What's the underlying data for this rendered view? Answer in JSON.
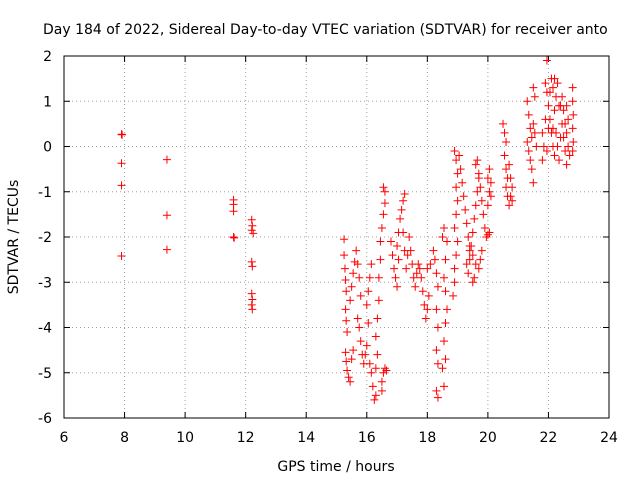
{
  "chart_data": {
    "type": "scatter",
    "title": "Day 184 of 2022, Sidereal Day-to-day VTEC variation (SDTVAR) for receiver anto",
    "xlabel": "GPS time / hours",
    "ylabel": "SDTVAR / TECUs",
    "xlim": [
      6,
      24
    ],
    "ylim": [
      -6,
      2
    ],
    "xticks": [
      "6",
      "8",
      "10",
      "12",
      "14",
      "16",
      "18",
      "20",
      "22",
      "24"
    ],
    "yticks": [
      "2",
      "1",
      "0",
      "-1",
      "-2",
      "-3",
      "-4",
      "-5",
      "-6"
    ],
    "grid": true,
    "marker": "+",
    "series": [
      {
        "name": "SDTVAR",
        "color": "#ff0000",
        "points": [
          [
            7.9,
            0.27
          ],
          [
            7.92,
            0.26
          ],
          [
            7.9,
            -0.37
          ],
          [
            7.9,
            -0.86
          ],
          [
            7.9,
            -2.42
          ],
          [
            9.4,
            -0.29
          ],
          [
            9.4,
            -1.52
          ],
          [
            9.4,
            -2.28
          ],
          [
            11.6,
            -1.18
          ],
          [
            11.6,
            -1.28
          ],
          [
            11.6,
            -1.43
          ],
          [
            11.6,
            -2.0
          ],
          [
            11.62,
            -2.02
          ],
          [
            12.2,
            -1.62
          ],
          [
            12.22,
            -1.75
          ],
          [
            12.2,
            -1.85
          ],
          [
            12.25,
            -1.92
          ],
          [
            12.2,
            -2.55
          ],
          [
            12.22,
            -2.65
          ],
          [
            12.2,
            -3.25
          ],
          [
            12.22,
            -3.38
          ],
          [
            12.2,
            -3.5
          ],
          [
            12.22,
            -3.6
          ],
          [
            15.25,
            -2.05
          ],
          [
            15.25,
            -2.4
          ],
          [
            15.28,
            -2.7
          ],
          [
            15.3,
            -2.95
          ],
          [
            15.32,
            -3.2
          ],
          [
            15.3,
            -3.6
          ],
          [
            15.32,
            -3.85
          ],
          [
            15.35,
            -4.1
          ],
          [
            15.3,
            -4.55
          ],
          [
            15.32,
            -4.75
          ],
          [
            15.35,
            -4.95
          ],
          [
            15.4,
            -5.1
          ],
          [
            15.45,
            -5.2
          ],
          [
            15.5,
            -4.7
          ],
          [
            15.55,
            -4.5
          ],
          [
            15.45,
            -3.4
          ],
          [
            15.5,
            -3.1
          ],
          [
            15.55,
            -2.8
          ],
          [
            15.6,
            -2.55
          ],
          [
            15.65,
            -2.3
          ],
          [
            15.7,
            -2.6
          ],
          [
            15.75,
            -2.9
          ],
          [
            15.8,
            -3.3
          ],
          [
            15.7,
            -3.8
          ],
          [
            15.75,
            -4.0
          ],
          [
            15.8,
            -4.3
          ],
          [
            15.85,
            -4.6
          ],
          [
            15.9,
            -4.8
          ],
          [
            15.95,
            -4.6
          ],
          [
            16.0,
            -4.4
          ],
          [
            16.05,
            -3.9
          ],
          [
            16.0,
            -3.5
          ],
          [
            16.05,
            -3.2
          ],
          [
            16.1,
            -2.9
          ],
          [
            16.15,
            -2.6
          ],
          [
            16.1,
            -4.8
          ],
          [
            16.15,
            -5.0
          ],
          [
            16.2,
            -5.3
          ],
          [
            16.25,
            -5.6
          ],
          [
            16.3,
            -5.5
          ],
          [
            16.3,
            -4.9
          ],
          [
            16.35,
            -4.6
          ],
          [
            16.3,
            -4.2
          ],
          [
            16.35,
            -3.8
          ],
          [
            16.4,
            -3.4
          ],
          [
            16.4,
            -2.9
          ],
          [
            16.45,
            -2.5
          ],
          [
            16.45,
            -2.1
          ],
          [
            16.5,
            -1.8
          ],
          [
            16.55,
            -1.5
          ],
          [
            16.6,
            -1.25
          ],
          [
            16.55,
            -0.9
          ],
          [
            16.6,
            -1.0
          ],
          [
            16.5,
            -5.2
          ],
          [
            16.55,
            -5.0
          ],
          [
            16.6,
            -4.9
          ],
          [
            16.65,
            -4.95
          ],
          [
            16.5,
            -5.4
          ],
          [
            16.8,
            -2.1
          ],
          [
            16.85,
            -2.4
          ],
          [
            16.9,
            -2.7
          ],
          [
            16.95,
            -2.9
          ],
          [
            17.0,
            -3.1
          ],
          [
            17.05,
            -2.5
          ],
          [
            17.0,
            -2.2
          ],
          [
            17.05,
            -1.9
          ],
          [
            17.1,
            -1.6
          ],
          [
            17.15,
            -1.4
          ],
          [
            17.2,
            -1.9
          ],
          [
            17.25,
            -2.3
          ],
          [
            17.3,
            -2.7
          ],
          [
            17.2,
            -1.2
          ],
          [
            17.25,
            -1.05
          ],
          [
            17.35,
            -2.4
          ],
          [
            17.4,
            -2.0
          ],
          [
            17.45,
            -2.3
          ],
          [
            17.5,
            -2.6
          ],
          [
            17.55,
            -2.9
          ],
          [
            17.6,
            -3.1
          ],
          [
            17.65,
            -2.8
          ],
          [
            17.7,
            -2.6
          ],
          [
            17.75,
            -2.7
          ],
          [
            17.8,
            -2.9
          ],
          [
            17.85,
            -3.2
          ],
          [
            17.9,
            -3.5
          ],
          [
            17.95,
            -3.8
          ],
          [
            18.0,
            -3.6
          ],
          [
            18.05,
            -3.3
          ],
          [
            18.0,
            -2.7
          ],
          [
            18.1,
            -2.6
          ],
          [
            18.2,
            -2.3
          ],
          [
            18.25,
            -2.5
          ],
          [
            18.3,
            -2.8
          ],
          [
            18.35,
            -3.1
          ],
          [
            18.3,
            -3.6
          ],
          [
            18.35,
            -4.0
          ],
          [
            18.3,
            -4.5
          ],
          [
            18.35,
            -4.8
          ],
          [
            18.3,
            -5.4
          ],
          [
            18.35,
            -5.55
          ],
          [
            18.5,
            -4.9
          ],
          [
            18.55,
            -5.3
          ],
          [
            18.6,
            -4.7
          ],
          [
            18.55,
            -4.3
          ],
          [
            18.6,
            -3.9
          ],
          [
            18.65,
            -3.6
          ],
          [
            18.6,
            -3.2
          ],
          [
            18.55,
            -2.9
          ],
          [
            18.6,
            -2.5
          ],
          [
            18.65,
            -2.1
          ],
          [
            18.5,
            -2.0
          ],
          [
            18.55,
            -1.8
          ],
          [
            18.85,
            -3.3
          ],
          [
            18.9,
            -3.0
          ],
          [
            18.9,
            -2.7
          ],
          [
            18.95,
            -2.4
          ],
          [
            19.0,
            -2.1
          ],
          [
            18.9,
            -1.8
          ],
          [
            18.95,
            -1.5
          ],
          [
            19.0,
            -1.2
          ],
          [
            18.95,
            -0.9
          ],
          [
            19.0,
            -0.6
          ],
          [
            18.95,
            -0.3
          ],
          [
            18.9,
            -0.1
          ],
          [
            19.05,
            -0.2
          ],
          [
            19.1,
            -0.5
          ],
          [
            19.15,
            -0.8
          ],
          [
            19.2,
            -1.1
          ],
          [
            19.25,
            -1.4
          ],
          [
            19.3,
            -1.7
          ],
          [
            19.35,
            -2.0
          ],
          [
            19.4,
            -2.3
          ],
          [
            19.3,
            -2.6
          ],
          [
            19.35,
            -2.8
          ],
          [
            19.4,
            -2.5
          ],
          [
            19.45,
            -2.2
          ],
          [
            19.5,
            -1.9
          ],
          [
            19.55,
            -1.6
          ],
          [
            19.6,
            -1.3
          ],
          [
            19.65,
            -1.0
          ],
          [
            19.7,
            -0.7
          ],
          [
            19.6,
            -0.4
          ],
          [
            19.65,
            -0.3
          ],
          [
            19.7,
            -0.6
          ],
          [
            19.75,
            -0.9
          ],
          [
            19.8,
            -1.2
          ],
          [
            19.85,
            -1.5
          ],
          [
            19.9,
            -1.8
          ],
          [
            19.95,
            -2.0
          ],
          [
            19.8,
            -2.3
          ],
          [
            19.75,
            -2.5
          ],
          [
            19.7,
            -2.7
          ],
          [
            19.6,
            -2.6
          ],
          [
            19.5,
            -2.4
          ],
          [
            19.4,
            -2.2
          ],
          [
            19.5,
            -3.0
          ],
          [
            19.55,
            -2.9
          ],
          [
            20.0,
            -1.3
          ],
          [
            20.05,
            -1.0
          ],
          [
            20.0,
            -0.7
          ],
          [
            20.05,
            -0.5
          ],
          [
            20.1,
            -0.8
          ],
          [
            20.1,
            -1.1
          ],
          [
            20.0,
            -1.95
          ],
          [
            20.05,
            -1.9
          ],
          [
            20.5,
            0.5
          ],
          [
            20.55,
            0.3
          ],
          [
            20.6,
            0.1
          ],
          [
            20.55,
            -0.2
          ],
          [
            20.6,
            -0.5
          ],
          [
            20.65,
            -0.7
          ],
          [
            20.6,
            -0.9
          ],
          [
            20.65,
            -1.1
          ],
          [
            20.7,
            -1.3
          ],
          [
            20.75,
            -1.1
          ],
          [
            20.8,
            -0.9
          ],
          [
            20.75,
            -0.7
          ],
          [
            20.8,
            -1.2
          ],
          [
            20.7,
            -0.4
          ],
          [
            21.3,
            1.0
          ],
          [
            21.35,
            0.7
          ],
          [
            21.4,
            0.4
          ],
          [
            21.3,
            0.1
          ],
          [
            21.35,
            -0.1
          ],
          [
            21.4,
            -0.3
          ],
          [
            21.45,
            -0.5
          ],
          [
            21.5,
            -0.8
          ],
          [
            21.45,
            0.2
          ],
          [
            21.5,
            0.5
          ],
          [
            21.55,
            0.3
          ],
          [
            21.6,
            0.0
          ],
          [
            21.5,
            1.3
          ],
          [
            21.55,
            1.1
          ],
          [
            21.8,
            0.3
          ],
          [
            21.85,
            0.0
          ],
          [
            21.8,
            -0.3
          ],
          [
            21.9,
            0.6
          ],
          [
            21.9,
            1.4
          ],
          [
            21.95,
            1.9
          ],
          [
            21.95,
            1.2
          ],
          [
            22.0,
            0.9
          ],
          [
            22.05,
            1.2
          ],
          [
            22.1,
            1.5
          ],
          [
            22.05,
            0.6
          ],
          [
            22.1,
            0.3
          ],
          [
            22.15,
            0.0
          ],
          [
            22.2,
            -0.2
          ],
          [
            22.15,
            0.4
          ],
          [
            22.2,
            0.8
          ],
          [
            22.25,
            1.1
          ],
          [
            22.3,
            1.4
          ],
          [
            22.25,
            0.3
          ],
          [
            22.3,
            0.0
          ],
          [
            22.35,
            -0.3
          ],
          [
            22.4,
            0.2
          ],
          [
            22.45,
            0.5
          ],
          [
            22.4,
            0.9
          ],
          [
            22.45,
            1.1
          ],
          [
            22.5,
            0.8
          ],
          [
            22.55,
            0.5
          ],
          [
            22.5,
            0.2
          ],
          [
            22.55,
            -0.1
          ],
          [
            22.6,
            -0.4
          ],
          [
            22.6,
            0.3
          ],
          [
            22.65,
            0.0
          ],
          [
            22.7,
            -0.2
          ],
          [
            22.6,
            0.9
          ],
          [
            22.65,
            0.6
          ],
          [
            22.2,
            1.5
          ],
          [
            22.15,
            1.3
          ],
          [
            22.35,
            0.9
          ],
          [
            22.0,
            0.4
          ],
          [
            21.95,
            -0.1
          ],
          [
            22.8,
            1.3
          ],
          [
            22.8,
            1.0
          ],
          [
            22.82,
            0.7
          ],
          [
            22.8,
            0.4
          ],
          [
            22.82,
            0.1
          ],
          [
            22.8,
            -0.1
          ]
        ]
      }
    ]
  }
}
